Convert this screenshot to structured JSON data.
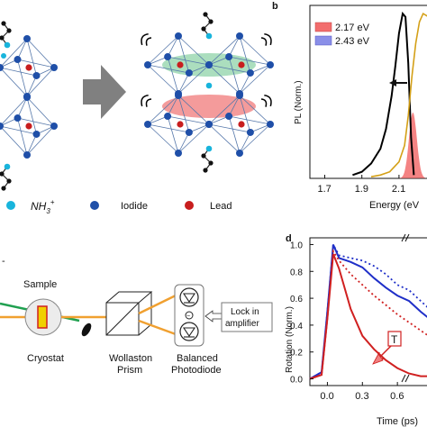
{
  "panels": {
    "b": {
      "letter": "b"
    },
    "d": {
      "letter": "d"
    }
  },
  "legend_structure": {
    "nh3": {
      "base": "NH",
      "sub": "3",
      "sup": "+"
    },
    "iodide": "Iodide",
    "lead": "Lead"
  },
  "setup": {
    "sample": "Sample",
    "cryostat": "Cryostat",
    "wollaston_line1": "Wollaston",
    "wollaston_line2": "Prism",
    "balanced_line1": "Balanced",
    "balanced_line2": "Photodiode",
    "lockin_line1": "Lock in",
    "lockin_line2": "amplifier",
    "minus_sign": "−",
    "dash_label": "-"
  },
  "colors": {
    "blue_atom": "#1f4fa8",
    "red_atom": "#c81e1e",
    "cyan_atom": "#18b4dc",
    "green_disk": "#8fd3a8",
    "red_disk": "#f07a7a",
    "arrow_gray": "#808080",
    "pl_black": "#000000",
    "pl_gold": "#d4a017",
    "fill_red": "#f26d6d",
    "fill_blue": "#8a8fe8",
    "rot_blue": "#1f2fc8",
    "rot_red": "#d02020",
    "beam_orange": "#f0a030",
    "beam_green": "#20a050"
  },
  "chart_data": [
    {
      "type": "line",
      "panel": "b",
      "xlabel": "Energy (eV",
      "ylabel": "PL (Norm.)",
      "xticks": [
        "1.7",
        "1.9",
        "2.1"
      ],
      "xlim": [
        1.62,
        2.28
      ],
      "ylim": [
        0,
        1.05
      ],
      "legend": {
        "placement": "top-left",
        "entries": [
          {
            "name": "2.17 eV",
            "color": "#f26d6d"
          },
          {
            "name": "2.43 eV",
            "color": "#8a8fe8"
          }
        ]
      },
      "series": [
        {
          "name": "",
          "color": "#000000",
          "x": [
            1.85,
            1.9,
            1.95,
            2.0,
            2.03,
            2.06,
            2.08,
            2.1,
            2.12,
            2.135,
            2.15,
            2.165,
            2.18
          ],
          "y": [
            0.02,
            0.04,
            0.09,
            0.18,
            0.3,
            0.5,
            0.68,
            0.88,
            1.0,
            0.98,
            0.7,
            0.25,
            0.02
          ]
        },
        {
          "name": "",
          "color": "#d4a017",
          "x": [
            1.95,
            2.0,
            2.05,
            2.1,
            2.13,
            2.15,
            2.17,
            2.19,
            2.21,
            2.23,
            2.26
          ],
          "y": [
            0.01,
            0.02,
            0.04,
            0.1,
            0.2,
            0.38,
            0.62,
            0.82,
            0.95,
            1.0,
            0.98
          ]
        }
      ],
      "fill_peak": {
        "name": "2.17 eV",
        "center": 2.175,
        "width": 0.03,
        "height": 0.4
      }
    },
    {
      "type": "line",
      "panel": "d",
      "xlabel": "Time (ps)",
      "ylabel": "Rotation (Norm.)",
      "xticks": [
        "0.0",
        "0.3",
        "0.6"
      ],
      "yticks": [
        "0.0",
        "0.2",
        "0.4",
        "0.6",
        "0.8",
        "1.0"
      ],
      "xlim": [
        -0.15,
        0.9
      ],
      "ylim": [
        -0.05,
        1.05
      ],
      "annotation": "T",
      "series": [
        {
          "name": "",
          "color": "#1f2fc8",
          "style": "solid",
          "x": [
            -0.15,
            -0.05,
            0.0,
            0.05,
            0.1,
            0.2,
            0.3,
            0.4,
            0.5,
            0.6,
            0.7,
            0.8,
            0.9
          ],
          "y": [
            0.0,
            0.05,
            0.5,
            1.0,
            0.9,
            0.87,
            0.83,
            0.75,
            0.68,
            0.62,
            0.58,
            0.5,
            0.43
          ]
        },
        {
          "name": "",
          "color": "#1f2fc8",
          "style": "dotted",
          "x": [
            -0.15,
            -0.05,
            0.0,
            0.05,
            0.1,
            0.2,
            0.3,
            0.4,
            0.5,
            0.6,
            0.7,
            0.8,
            0.9
          ],
          "y": [
            0.0,
            0.05,
            0.5,
            1.0,
            0.92,
            0.9,
            0.88,
            0.84,
            0.78,
            0.7,
            0.66,
            0.58,
            0.5
          ]
        },
        {
          "name": "",
          "color": "#d02020",
          "style": "solid",
          "x": [
            -0.15,
            -0.05,
            0.0,
            0.05,
            0.1,
            0.2,
            0.3,
            0.4,
            0.5,
            0.6,
            0.7,
            0.8,
            0.9
          ],
          "y": [
            0.0,
            0.03,
            0.45,
            0.93,
            0.82,
            0.52,
            0.32,
            0.22,
            0.14,
            0.08,
            0.04,
            0.02,
            0.02
          ]
        },
        {
          "name": "",
          "color": "#d02020",
          "style": "dotted",
          "x": [
            -0.15,
            -0.05,
            0.0,
            0.05,
            0.1,
            0.2,
            0.3,
            0.4,
            0.5,
            0.6,
            0.7,
            0.8,
            0.9
          ],
          "y": [
            0.0,
            0.03,
            0.45,
            0.95,
            0.88,
            0.78,
            0.7,
            0.62,
            0.55,
            0.48,
            0.42,
            0.36,
            0.3
          ]
        }
      ]
    }
  ]
}
